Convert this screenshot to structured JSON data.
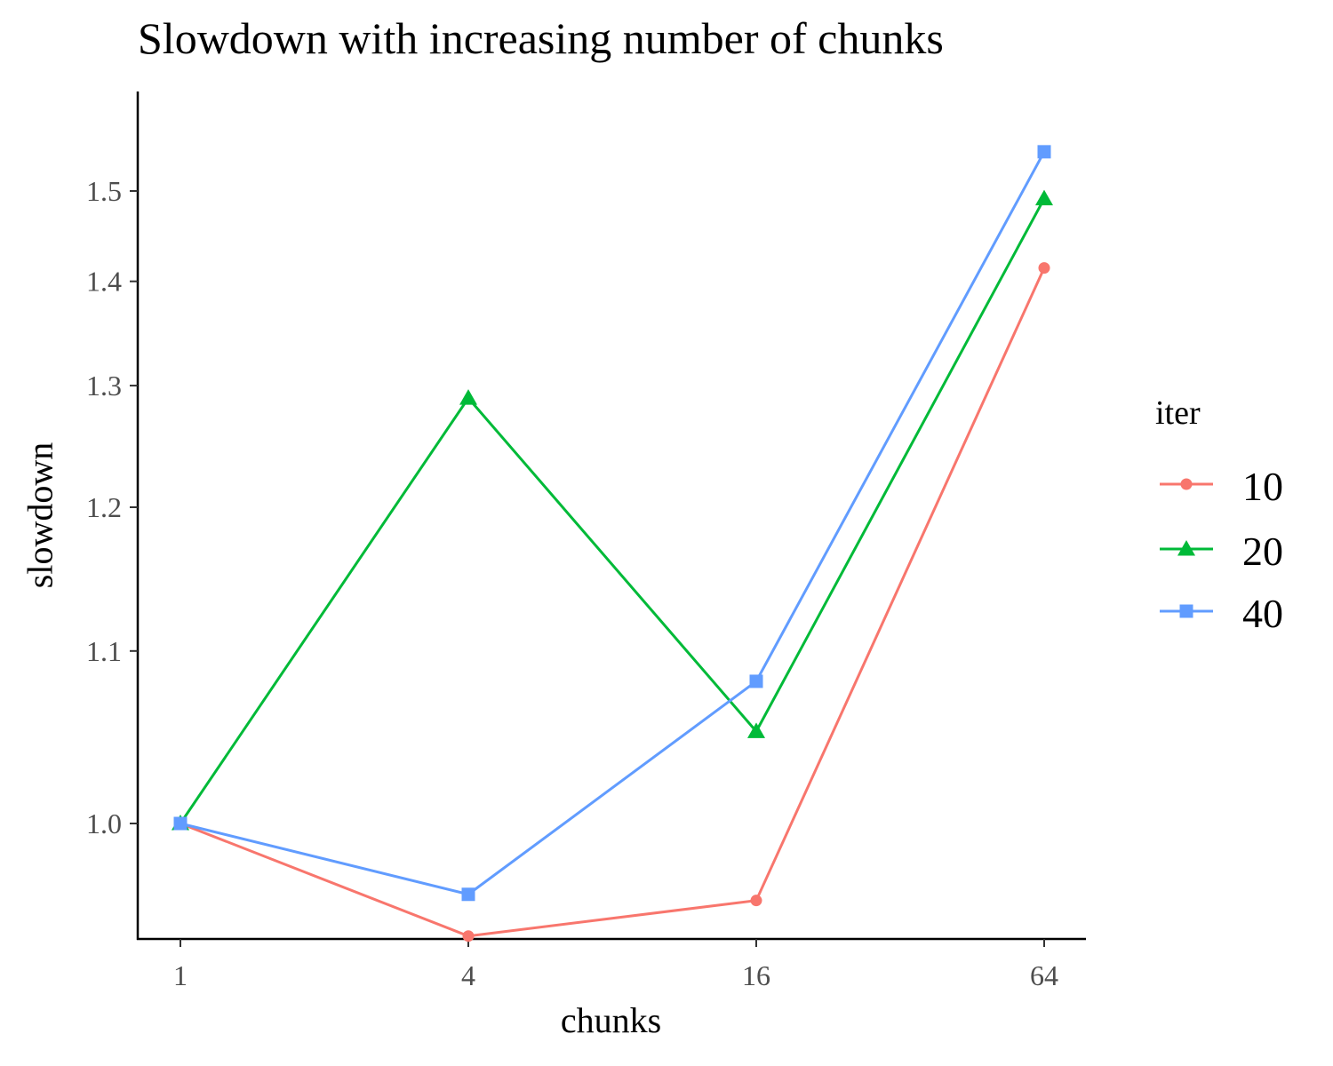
{
  "chart_data": {
    "type": "line",
    "title": "Slowdown with increasing number of chunks",
    "xlabel": "chunks",
    "ylabel": "slowdown",
    "x_scale": "log",
    "categories": [
      "1",
      "4",
      "16",
      "64"
    ],
    "x": [
      1,
      4,
      16,
      64
    ],
    "y_scale": "reciprocal",
    "yticks": [
      "1.0",
      "1.1",
      "1.2",
      "1.3",
      "1.4",
      "1.5"
    ],
    "ylim": [
      0.94,
      1.56
    ],
    "grid": false,
    "legend": {
      "title": "iter",
      "position": "right"
    },
    "series": [
      {
        "name": "10",
        "color": "#F8766D",
        "marker": "circle",
        "values": [
          1.0,
          0.944,
          0.961,
          1.414
        ]
      },
      {
        "name": "20",
        "color": "#00BA38",
        "marker": "triangle",
        "values": [
          1.0,
          1.289,
          1.051,
          1.491
        ]
      },
      {
        "name": "40",
        "color": "#619CFF",
        "marker": "square",
        "values": [
          1.0,
          0.964,
          1.081,
          1.548
        ]
      }
    ]
  }
}
